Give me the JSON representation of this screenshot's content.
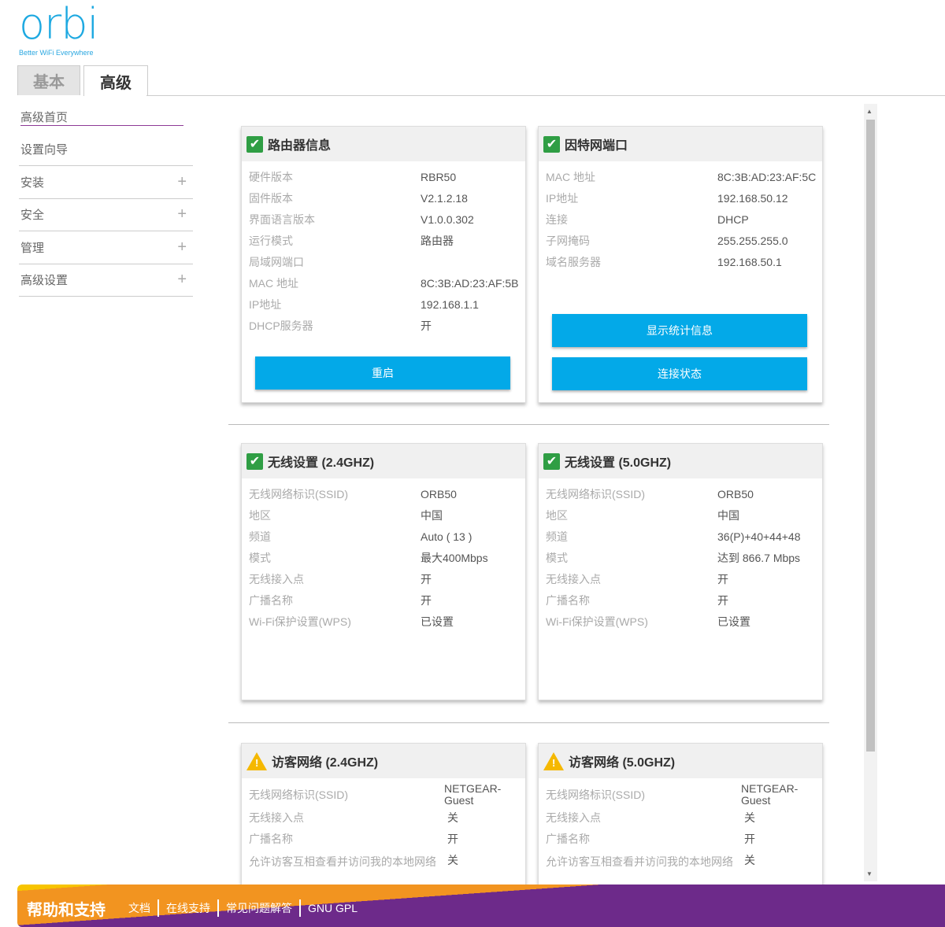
{
  "logo": {
    "word": "orbi",
    "tagline": "Better WiFi Everywhere"
  },
  "tabs": [
    {
      "label": "基本",
      "active": false
    },
    {
      "label": "高级",
      "active": true
    }
  ],
  "nav": [
    {
      "label": "高级首页",
      "expandable": false
    },
    {
      "label": "设置向导",
      "expandable": false
    },
    {
      "label": "安装",
      "expandable": true
    },
    {
      "label": "安全",
      "expandable": true
    },
    {
      "label": "管理",
      "expandable": true
    },
    {
      "label": "高级设置",
      "expandable": true
    }
  ],
  "panels": [
    {
      "title": "路由器信息",
      "status": "ok",
      "rows": [
        [
          "硬件版本",
          "RBR50"
        ],
        [
          "固件版本",
          "V2.1.2.18"
        ],
        [
          "界面语言版本",
          "V1.0.0.302"
        ],
        [
          "运行模式",
          "路由器"
        ],
        [
          " 局域网端口",
          ""
        ],
        [
          "MAC 地址",
          "8C:3B:AD:23:AF:5B"
        ],
        [
          "IP地址",
          "192.168.1.1"
        ],
        [
          "DHCP服务器",
          "开"
        ]
      ],
      "buttons": [
        "重启"
      ]
    },
    {
      "title": "因特网端口",
      "status": "ok",
      "rows": [
        [
          "MAC 地址",
          "8C:3B:AD:23:AF:5C"
        ],
        [
          "IP地址",
          "192.168.50.12"
        ],
        [
          "连接",
          "DHCP"
        ],
        [
          "子网掩码",
          "255.255.255.0"
        ],
        [
          "域名服务器",
          "192.168.50.1"
        ]
      ],
      "buttons": [
        "显示统计信息",
        "连接状态"
      ]
    },
    {
      "title": "无线设置 (2.4GHZ)",
      "status": "ok",
      "rows": [
        [
          "无线网络标识(SSID)",
          "ORB50"
        ],
        [
          "地区",
          "中国"
        ],
        [
          "频道",
          "Auto ( 13 )"
        ],
        [
          "模式",
          "最大400Mbps"
        ],
        [
          "无线接入点",
          "开"
        ],
        [
          "广播名称",
          "开"
        ],
        [
          "Wi-Fi保护设置(WPS)",
          "已设置"
        ]
      ],
      "buttons": []
    },
    {
      "title": "无线设置 (5.0GHZ)",
      "status": "ok",
      "rows": [
        [
          "无线网络标识(SSID)",
          "ORB50"
        ],
        [
          "地区",
          "中国"
        ],
        [
          "频道",
          "36(P)+40+44+48"
        ],
        [
          "模式",
          "达到 866.7 Mbps"
        ],
        [
          "无线接入点",
          "开"
        ],
        [
          "广播名称",
          "开"
        ],
        [
          "Wi-Fi保护设置(WPS)",
          "已设置"
        ]
      ],
      "buttons": []
    },
    {
      "title": "访客网络 (2.4GHZ)",
      "status": "warning",
      "rows": [
        [
          "无线网络标识(SSID)",
          "NETGEAR-Guest"
        ],
        [
          "无线接入点",
          "关"
        ],
        [
          "广播名称",
          "开"
        ],
        [
          "允许访客互相查看并访问我的本地网络",
          "关"
        ]
      ],
      "buttons": []
    },
    {
      "title": "访客网络 (5.0GHZ)",
      "status": "warning",
      "rows": [
        [
          "无线网络标识(SSID)",
          "NETGEAR-Guest"
        ],
        [
          "无线接入点",
          "关"
        ],
        [
          "广播名称",
          "开"
        ],
        [
          "允许访客互相查看并访问我的本地网络",
          "关"
        ]
      ],
      "buttons": []
    }
  ],
  "footer": {
    "title": "帮助和支持",
    "links": [
      "文档",
      "在线支持",
      "常见问题解答",
      "GNU GPL"
    ]
  },
  "colors": {
    "brand": "#1ea9e1",
    "button": "#03a9e8",
    "footer_purple": "#6d2a8a",
    "footer_orange": "#f29420",
    "ok": "#2f9e44",
    "warning": "#f5b800"
  }
}
